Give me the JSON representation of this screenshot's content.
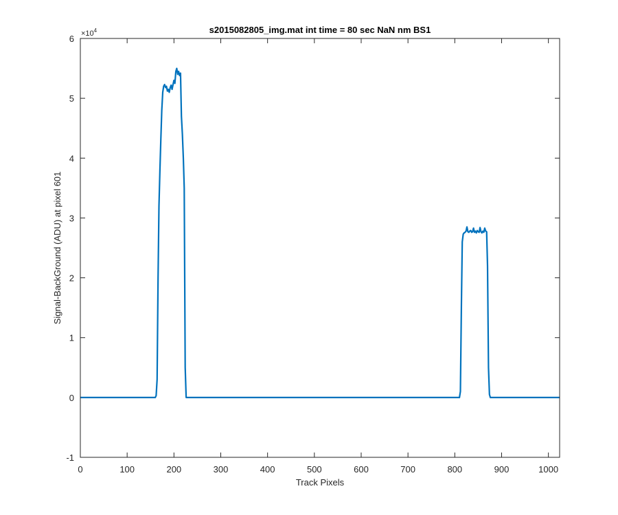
{
  "chart_data": {
    "type": "line",
    "title": "s2015082805_img.mat int time = 80 sec  NaN nm BS1",
    "xlabel": "Track Pixels",
    "ylabel": "Signal-BackGround (ADU) at pixel 601",
    "y_multiplier_label": "×10",
    "y_multiplier_exp": "4",
    "xlim": [
      0,
      1024
    ],
    "ylim": [
      -10000,
      60000
    ],
    "x_ticks": [
      0,
      100,
      200,
      300,
      400,
      500,
      600,
      700,
      800,
      900,
      1000
    ],
    "x_tick_labels": [
      "0",
      "100",
      "200",
      "300",
      "400",
      "500",
      "600",
      "700",
      "800",
      "900",
      "1000"
    ],
    "y_ticks": [
      -10000,
      0,
      10000,
      20000,
      30000,
      40000,
      50000,
      60000
    ],
    "y_tick_labels": [
      "-1",
      "0",
      "1",
      "2",
      "3",
      "4",
      "5",
      "6"
    ],
    "grid": false,
    "line_color": "#0072BD",
    "series": [
      {
        "x": [
          0,
          100,
          160,
          162,
          164,
          166,
          168,
          170,
          172,
          174,
          176,
          178,
          180,
          182,
          184,
          186,
          188,
          190,
          192,
          194,
          196,
          198,
          200,
          202,
          204,
          206,
          208,
          210,
          212,
          214,
          216,
          218,
          220,
          222,
          224,
          226,
          228,
          230,
          300,
          400,
          500,
          600,
          700,
          810,
          812,
          814,
          816,
          818,
          820,
          822,
          824,
          826,
          828,
          830,
          832,
          834,
          836,
          838,
          840,
          842,
          844,
          846,
          848,
          850,
          852,
          854,
          856,
          858,
          860,
          862,
          864,
          866,
          868,
          870,
          872,
          874,
          876,
          878,
          880,
          950,
          1024
        ],
        "y": [
          0,
          0,
          0,
          300,
          3000,
          20000,
          32000,
          38000,
          43000,
          48000,
          51000,
          52000,
          52300,
          51800,
          52000,
          51200,
          51500,
          51000,
          51800,
          52200,
          51500,
          52300,
          53000,
          52500,
          54500,
          55000,
          54000,
          54500,
          53800,
          54200,
          47000,
          44000,
          40000,
          35000,
          5000,
          0,
          0,
          0,
          0,
          0,
          0,
          0,
          0,
          0,
          1000,
          15000,
          26000,
          27300,
          27500,
          27600,
          27800,
          28500,
          27700,
          27600,
          27800,
          27900,
          27600,
          27700,
          28300,
          27600,
          27800,
          27500,
          27900,
          27700,
          27600,
          28400,
          27700,
          27500,
          27800,
          27600,
          28300,
          27800,
          27700,
          22000,
          5000,
          500,
          0,
          0,
          0,
          0,
          0
        ]
      }
    ]
  }
}
